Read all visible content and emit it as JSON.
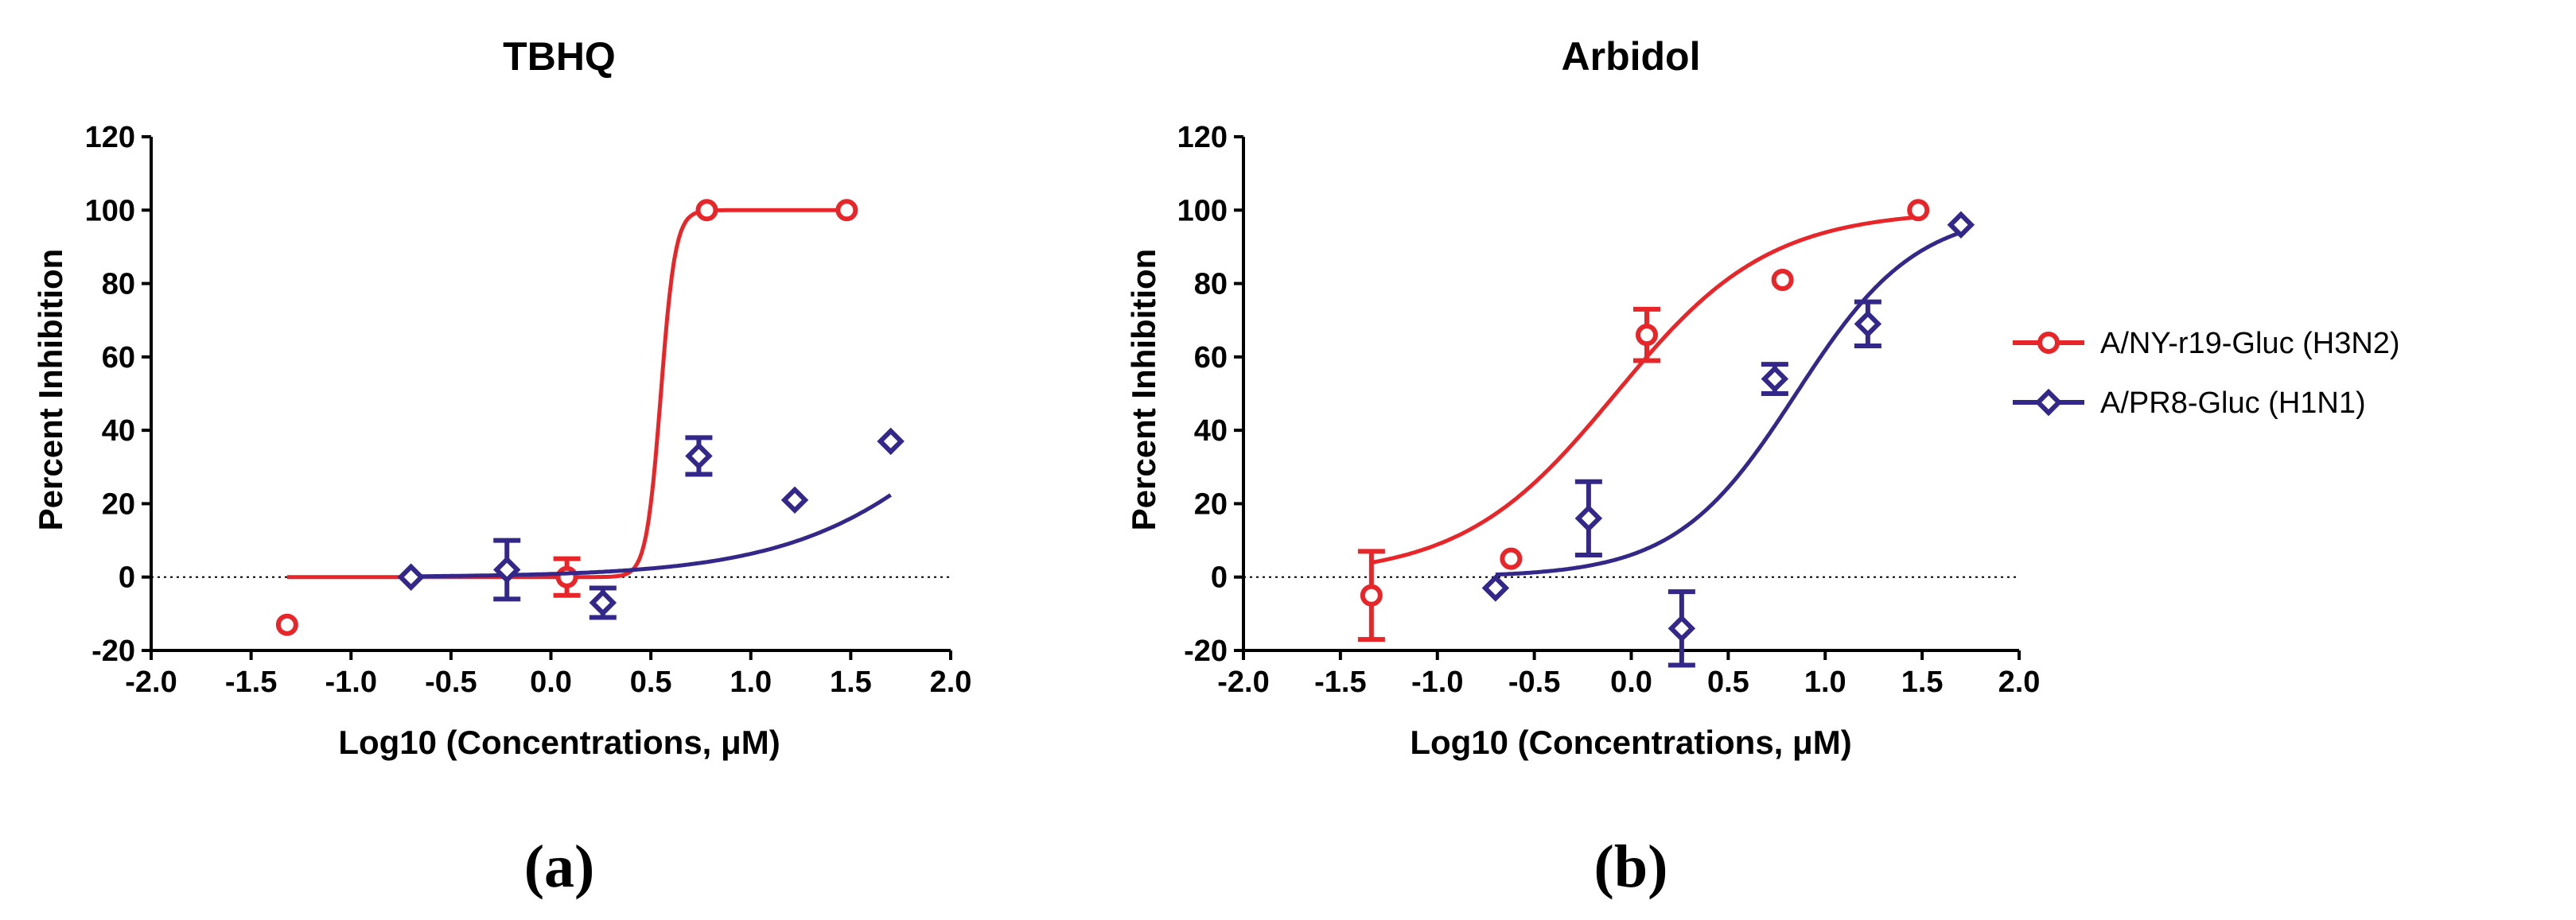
{
  "chart_data": [
    {
      "type": "scatter",
      "panel_label": "(a)",
      "title": "TBHQ",
      "xlabel": "Log10 (Concentrations,  μM)",
      "ylabel": "Percent Inhibition",
      "xlim": [
        -2.0,
        2.0
      ],
      "ylim": [
        -20,
        120
      ],
      "xticks": [
        "-2.0",
        "-1.5",
        "-1.0",
        "-0.5",
        "0.0",
        "0.5",
        "1.0",
        "1.5",
        "2.0"
      ],
      "yticks": [
        "-20",
        "0",
        "20",
        "40",
        "60",
        "80",
        "100",
        "120"
      ],
      "reference_line_y": 0,
      "series": [
        {
          "name": "A/NY-r19-Gluc (H3N2)",
          "color": "#e8262a",
          "marker": "circle",
          "points": [
            {
              "x": -1.32,
              "y": -13,
              "err": 0
            },
            {
              "x": 0.08,
              "y": 0,
              "err": 5
            },
            {
              "x": 0.78,
              "y": 100,
              "err": 0
            },
            {
              "x": 1.48,
              "y": 100,
              "err": 0
            }
          ],
          "fit": {
            "bottom": 0,
            "top": 100,
            "logIC50": 0.55,
            "hill": 12
          }
        },
        {
          "name": "A/PR8-Gluc (H1N1)",
          "color": "#33278a",
          "marker": "diamond",
          "points": [
            {
              "x": -0.7,
              "y": 0,
              "err": 0
            },
            {
              "x": -0.22,
              "y": 2,
              "err": 8
            },
            {
              "x": 0.26,
              "y": -7,
              "err": 4
            },
            {
              "x": 0.74,
              "y": 33,
              "err": 5
            },
            {
              "x": 1.22,
              "y": 21,
              "err": 0
            },
            {
              "x": 1.7,
              "y": 37,
              "err": 0
            }
          ],
          "fit": {
            "bottom": 0,
            "top": 100,
            "logIC50": 2.3,
            "hill": 0.9
          }
        }
      ]
    },
    {
      "type": "scatter",
      "panel_label": "(b)",
      "title": "Arbidol",
      "xlabel": "Log10 (Concentrations,  μM)",
      "ylabel": "Percent Inhibition",
      "xlim": [
        -2.0,
        2.0
      ],
      "ylim": [
        -20,
        120
      ],
      "xticks": [
        "-2.0",
        "-1.5",
        "-1.0",
        "-0.5",
        "0.0",
        "0.5",
        "1.0",
        "1.5",
        "2.0"
      ],
      "yticks": [
        "-20",
        "0",
        "20",
        "40",
        "60",
        "80",
        "100",
        "120"
      ],
      "reference_line_y": 0,
      "series": [
        {
          "name": "A/NY-r19-Gluc (H3N2)",
          "color": "#e8262a",
          "marker": "circle",
          "points": [
            {
              "x": -1.34,
              "y": -5,
              "err": 12
            },
            {
              "x": -0.62,
              "y": 5,
              "err": 0
            },
            {
              "x": 0.08,
              "y": 66,
              "err": 7
            },
            {
              "x": 0.78,
              "y": 81,
              "err": 0
            },
            {
              "x": 1.48,
              "y": 100,
              "err": 0
            }
          ],
          "fit": {
            "bottom": 0,
            "top": 100,
            "logIC50": -0.08,
            "hill": 1.1
          }
        },
        {
          "name": "A/PR8-Gluc (H1N1)",
          "color": "#33278a",
          "marker": "diamond",
          "points": [
            {
              "x": -0.7,
              "y": -3,
              "err": 0
            },
            {
              "x": -0.22,
              "y": 16,
              "err": 10
            },
            {
              "x": 0.26,
              "y": -14,
              "err": 10
            },
            {
              "x": 0.74,
              "y": 54,
              "err": 4
            },
            {
              "x": 1.22,
              "y": 69,
              "err": 6
            },
            {
              "x": 1.7,
              "y": 96,
              "err": 0
            }
          ],
          "fit": {
            "bottom": 0,
            "top": 100,
            "logIC50": 0.85,
            "hill": 1.4
          }
        }
      ]
    }
  ],
  "legend": {
    "entries": [
      {
        "label": "A/NY-r19-Gluc (H3N2)",
        "color": "#e8262a",
        "marker": "circle"
      },
      {
        "label": "A/PR8-Gluc (H1N1)",
        "color": "#33278a",
        "marker": "diamond"
      }
    ]
  }
}
